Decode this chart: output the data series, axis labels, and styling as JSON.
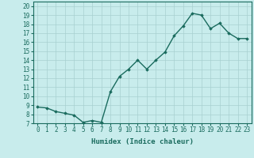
{
  "x": [
    0,
    1,
    2,
    3,
    4,
    5,
    6,
    7,
    8,
    9,
    10,
    11,
    12,
    13,
    14,
    15,
    16,
    17,
    18,
    19,
    20,
    21,
    22,
    23
  ],
  "y": [
    8.8,
    8.7,
    8.3,
    8.1,
    7.9,
    7.1,
    7.3,
    7.1,
    10.5,
    12.2,
    13.0,
    14.0,
    13.0,
    14.0,
    14.9,
    16.7,
    17.8,
    19.2,
    19.0,
    17.5,
    18.1,
    17.0,
    16.4,
    16.4
  ],
  "line_color": "#1a6b5e",
  "marker": "D",
  "marker_size": 1.8,
  "bg_color": "#c8ecec",
  "grid_color": "#a8d0d0",
  "tick_color": "#1a6b5e",
  "label_color": "#1a6b5e",
  "xlabel": "Humidex (Indice chaleur)",
  "xlim": [
    -0.5,
    23.5
  ],
  "ylim": [
    7,
    20.5
  ],
  "yticks": [
    7,
    8,
    9,
    10,
    11,
    12,
    13,
    14,
    15,
    16,
    17,
    18,
    19,
    20
  ],
  "xticks": [
    0,
    1,
    2,
    3,
    4,
    5,
    6,
    7,
    8,
    9,
    10,
    11,
    12,
    13,
    14,
    15,
    16,
    17,
    18,
    19,
    20,
    21,
    22,
    23
  ],
  "font_size": 5.5,
  "xlabel_font_size": 6.5,
  "line_width": 1.0
}
